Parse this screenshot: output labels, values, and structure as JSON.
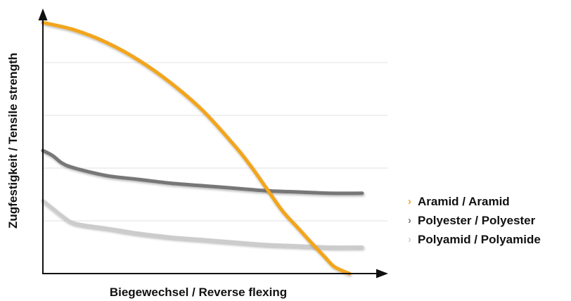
{
  "chart_data": {
    "type": "line",
    "xlabel": "Biegewechsel / Reverse flexing",
    "ylabel": "Zugfestigkeit / Tensile strength",
    "xlim": [
      0,
      100
    ],
    "ylim": [
      0,
      100
    ],
    "grid": "horizontal",
    "ticks_labeled": false,
    "legend_placement": "right",
    "series": [
      {
        "name": "Aramid / Aramid",
        "color": "#f2a51a",
        "x": [
          0,
          10,
          20,
          30,
          40,
          50,
          60,
          65,
          70,
          75,
          80,
          85,
          88,
          91,
          94,
          96
        ],
        "y": [
          100,
          97,
          92,
          85,
          76,
          65,
          51,
          43,
          34,
          25,
          18,
          11,
          7,
          3,
          1,
          0
        ]
      },
      {
        "name": "Polyester / Polyester",
        "color": "#777777",
        "x": [
          0,
          3,
          6,
          10,
          20,
          30,
          40,
          50,
          60,
          70,
          80,
          90,
          100
        ],
        "y": [
          49,
          47,
          44,
          42,
          39,
          37.5,
          36,
          35,
          34,
          33,
          32.5,
          32,
          32
        ]
      },
      {
        "name": "Polyamid / Polyamide",
        "color": "#cccccc",
        "x": [
          0,
          3,
          6,
          10,
          20,
          30,
          40,
          50,
          60,
          70,
          80,
          90,
          100
        ],
        "y": [
          29,
          26,
          23,
          20,
          18,
          16,
          14.5,
          13.5,
          12.5,
          11.5,
          11,
          10.5,
          10.5
        ]
      }
    ]
  }
}
